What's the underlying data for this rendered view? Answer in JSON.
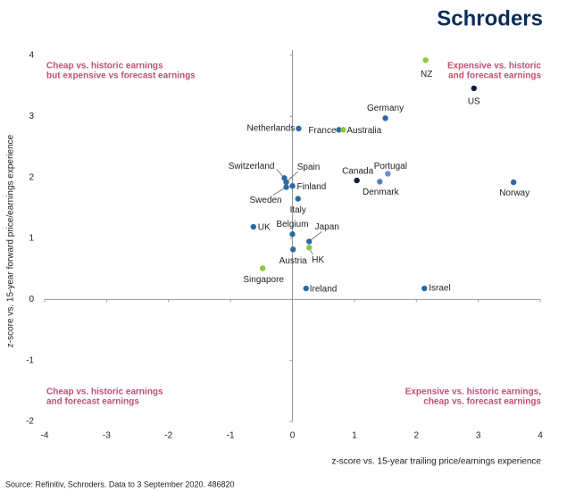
{
  "brand": "Schroders",
  "chart_data": {
    "type": "scatter",
    "xlabel": "z-score vs. 15-year trailing price/earnings experience",
    "ylabel": "z-score vs. 15-year forward price/earnings experience",
    "xlim": [
      -4,
      4
    ],
    "xticks": [
      -4,
      -3,
      -2,
      -1,
      0,
      1,
      2,
      3,
      4
    ],
    "ylim": [
      -2,
      4
    ],
    "yticks": [
      -2,
      -1,
      0,
      1,
      2,
      3,
      4
    ],
    "grid": false,
    "points": [
      {
        "label": "NZ",
        "x": 2.15,
        "y": 3.92,
        "color": "#8dc641"
      },
      {
        "label": "US",
        "x": 2.93,
        "y": 3.46,
        "color": "#0b1f44"
      },
      {
        "label": "Germany",
        "x": 1.5,
        "y": 2.97,
        "color": "#2a6aa3"
      },
      {
        "label": "Netherlands",
        "x": 0.1,
        "y": 2.8,
        "color": "#2a6aa3"
      },
      {
        "label": "France",
        "x": 0.75,
        "y": 2.78,
        "color": "#2a6aa3"
      },
      {
        "label": "Australia",
        "x": 0.82,
        "y": 2.78,
        "color": "#8dc641"
      },
      {
        "label": "Canada",
        "x": 1.04,
        "y": 1.95,
        "color": "#0b1f44"
      },
      {
        "label": "Portugal",
        "x": 1.54,
        "y": 2.06,
        "color": "#6b8ec8"
      },
      {
        "label": "Denmark",
        "x": 1.41,
        "y": 1.93,
        "color": "#5a7fc0"
      },
      {
        "label": "Norway",
        "x": 3.57,
        "y": 1.92,
        "color": "#2a6aa3"
      },
      {
        "label": "Switzerland",
        "x": -0.13,
        "y": 1.99,
        "color": "#2a6aa3"
      },
      {
        "label": "Spain",
        "x": -0.1,
        "y": 1.92,
        "color": "#2a6aa3"
      },
      {
        "label": "Finland",
        "x": 0.0,
        "y": 1.86,
        "color": "#2a6aa3"
      },
      {
        "label": "Sweden",
        "x": -0.1,
        "y": 1.84,
        "color": "#2a6aa3"
      },
      {
        "label": "Italy",
        "x": 0.09,
        "y": 1.65,
        "color": "#2a6aa3"
      },
      {
        "label": "UK",
        "x": -0.63,
        "y": 1.19,
        "color": "#2a6aa3"
      },
      {
        "label": "Belgium",
        "x": 0.0,
        "y": 1.07,
        "color": "#2a6aa3"
      },
      {
        "label": "Japan",
        "x": 0.27,
        "y": 0.95,
        "color": "#2a6aa3"
      },
      {
        "label": "HK",
        "x": 0.27,
        "y": 0.85,
        "color": "#8dc641"
      },
      {
        "label": "Austria",
        "x": 0.01,
        "y": 0.82,
        "color": "#2a6aa3"
      },
      {
        "label": "Singapore",
        "x": -0.48,
        "y": 0.51,
        "color": "#8dc641"
      },
      {
        "label": "Ireland",
        "x": 0.22,
        "y": 0.18,
        "color": "#2a6aa3"
      },
      {
        "label": "Israel",
        "x": 2.13,
        "y": 0.18,
        "color": "#2a6aa3"
      }
    ],
    "annotations": [
      {
        "lines": [
          "Cheap vs. historic earnings",
          "but expensive vs forecast earnings"
        ],
        "corner": "top-left"
      },
      {
        "lines": [
          "Expensive vs. historic",
          "and forecast earnings"
        ],
        "corner": "top-right"
      },
      {
        "lines": [
          "Cheap vs. historic earnings",
          "and forecast earnings"
        ],
        "corner": "bottom-left"
      },
      {
        "lines": [
          "Expensive vs. historic earnings,",
          "cheap vs. forecast earnings"
        ],
        "corner": "bottom-right"
      }
    ],
    "annotation_color": "#c0506f"
  },
  "source": "Source: Refinitiv, Schroders. Data to 3 September 2020. 486820"
}
